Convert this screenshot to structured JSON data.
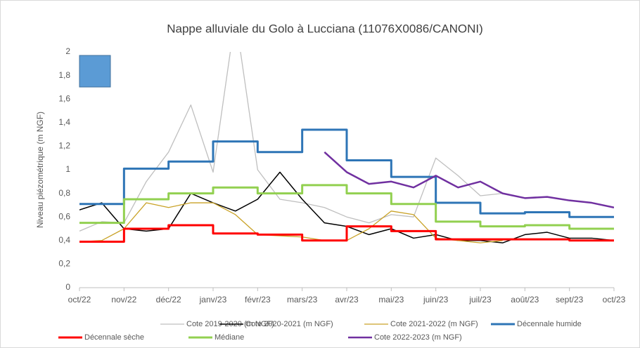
{
  "chart_data": {
    "type": "line",
    "title": "Nappe alluviale du Golo à Lucciana (11076X0086/CANONI)",
    "y_label": "Niveau piézométrique (m NGF)",
    "x": [
      0,
      0.5,
      1,
      1.5,
      2,
      2.5,
      3,
      3.5,
      4,
      4.5,
      5,
      5.5,
      6,
      6.5,
      7,
      7.5,
      8,
      8.5,
      9,
      9.5,
      10,
      10.5,
      11,
      11.5,
      12
    ],
    "xlim": [
      0,
      12
    ],
    "xticks": [
      {
        "value": 0,
        "label": "oct/22"
      },
      {
        "value": 1,
        "label": "nov/22"
      },
      {
        "value": 2,
        "label": "déc/22"
      },
      {
        "value": 3,
        "label": "janv/23"
      },
      {
        "value": 4,
        "label": "févr/23"
      },
      {
        "value": 5,
        "label": "mars/23"
      },
      {
        "value": 6,
        "label": "avr/23"
      },
      {
        "value": 7,
        "label": "mai/23"
      },
      {
        "value": 8,
        "label": "juin/23"
      },
      {
        "value": 9,
        "label": "juil/23"
      },
      {
        "value": 10,
        "label": "août/23"
      },
      {
        "value": 11,
        "label": "sept/23"
      },
      {
        "value": 12,
        "label": "oct/23"
      }
    ],
    "ylim": [
      0,
      2
    ],
    "yticks": [
      0,
      {
        "value": 0.2,
        "label": "0,2"
      },
      {
        "value": 0.4,
        "label": "0,4"
      },
      {
        "value": 0.6,
        "label": "0,6"
      },
      {
        "value": 0.8,
        "label": "0,8"
      },
      1,
      {
        "value": 1.2,
        "label": "1,2"
      },
      {
        "value": 1.4,
        "label": "1,4"
      },
      {
        "value": 1.6,
        "label": "1,6"
      },
      {
        "value": 1.8,
        "label": "1,8"
      },
      2
    ],
    "grid": false,
    "legend": "bottom",
    "series": [
      {
        "name": "Cote 2019-2020 (m NGF)",
        "color": "#bfbfbf",
        "width": 1.3,
        "values": [
          0.48,
          0.56,
          0.55,
          0.9,
          1.15,
          1.55,
          0.98,
          2.3,
          1.0,
          0.75,
          0.72,
          0.68,
          0.6,
          0.55,
          0.62,
          0.6,
          1.1,
          0.95,
          0.78,
          0.8,
          null,
          null,
          null,
          null,
          null
        ]
      },
      {
        "name": "Cote 2020-2021 (m NGF)",
        "color": "#000000",
        "width": 1.5,
        "values": [
          0.66,
          0.72,
          0.5,
          0.48,
          0.5,
          0.8,
          0.72,
          0.65,
          0.75,
          0.98,
          0.75,
          0.55,
          0.52,
          0.45,
          0.5,
          0.42,
          0.45,
          0.4,
          0.4,
          0.38,
          0.45,
          0.47,
          0.42,
          0.42,
          0.4
        ]
      },
      {
        "name": "Cote 2021-2022 (m NGF)",
        "color": "#c9a227",
        "width": 1.3,
        "values": [
          0.39,
          0.4,
          0.5,
          0.72,
          0.68,
          0.72,
          0.72,
          0.62,
          0.45,
          0.44,
          0.43,
          0.4,
          0.4,
          0.5,
          0.65,
          0.62,
          0.42,
          0.4,
          0.38,
          0.4,
          null,
          null,
          null,
          null,
          null
        ]
      },
      {
        "name": "Décennale humide",
        "color": "#2e75b6",
        "width": 3,
        "step": true,
        "x": [
          0,
          1,
          2,
          3,
          4,
          5,
          6,
          7,
          8,
          9,
          10,
          11,
          12
        ],
        "values": [
          0.71,
          1.01,
          1.07,
          1.24,
          1.15,
          1.34,
          1.08,
          0.94,
          0.72,
          0.63,
          0.64,
          0.6,
          0.6
        ]
      },
      {
        "name": "Décennale sèche",
        "color": "#ff0000",
        "width": 3,
        "step": true,
        "x": [
          0,
          1,
          2,
          3,
          4,
          5,
          6,
          7,
          8,
          9,
          10,
          11,
          12
        ],
        "values": [
          0.39,
          0.5,
          0.53,
          0.46,
          0.45,
          0.4,
          0.52,
          0.48,
          0.41,
          0.41,
          0.41,
          0.4,
          0.4
        ]
      },
      {
        "name": "Médiane",
        "color": "#92d050",
        "width": 3,
        "step": true,
        "x": [
          0,
          1,
          2,
          3,
          4,
          5,
          6,
          7,
          8,
          9,
          10,
          11,
          12
        ],
        "values": [
          0.55,
          0.75,
          0.8,
          0.85,
          0.8,
          0.87,
          0.8,
          0.71,
          0.56,
          0.52,
          0.53,
          0.5,
          0.5
        ]
      },
      {
        "name": "Cote 2022-2023 (m NGF)",
        "color": "#7030a0",
        "width": 2.5,
        "values": [
          null,
          null,
          null,
          null,
          null,
          null,
          null,
          null,
          null,
          null,
          null,
          1.15,
          0.98,
          0.88,
          0.9,
          0.85,
          0.95,
          0.85,
          0.9,
          0.8,
          0.76,
          0.77,
          0.74,
          0.72,
          0.68
        ]
      }
    ]
  }
}
